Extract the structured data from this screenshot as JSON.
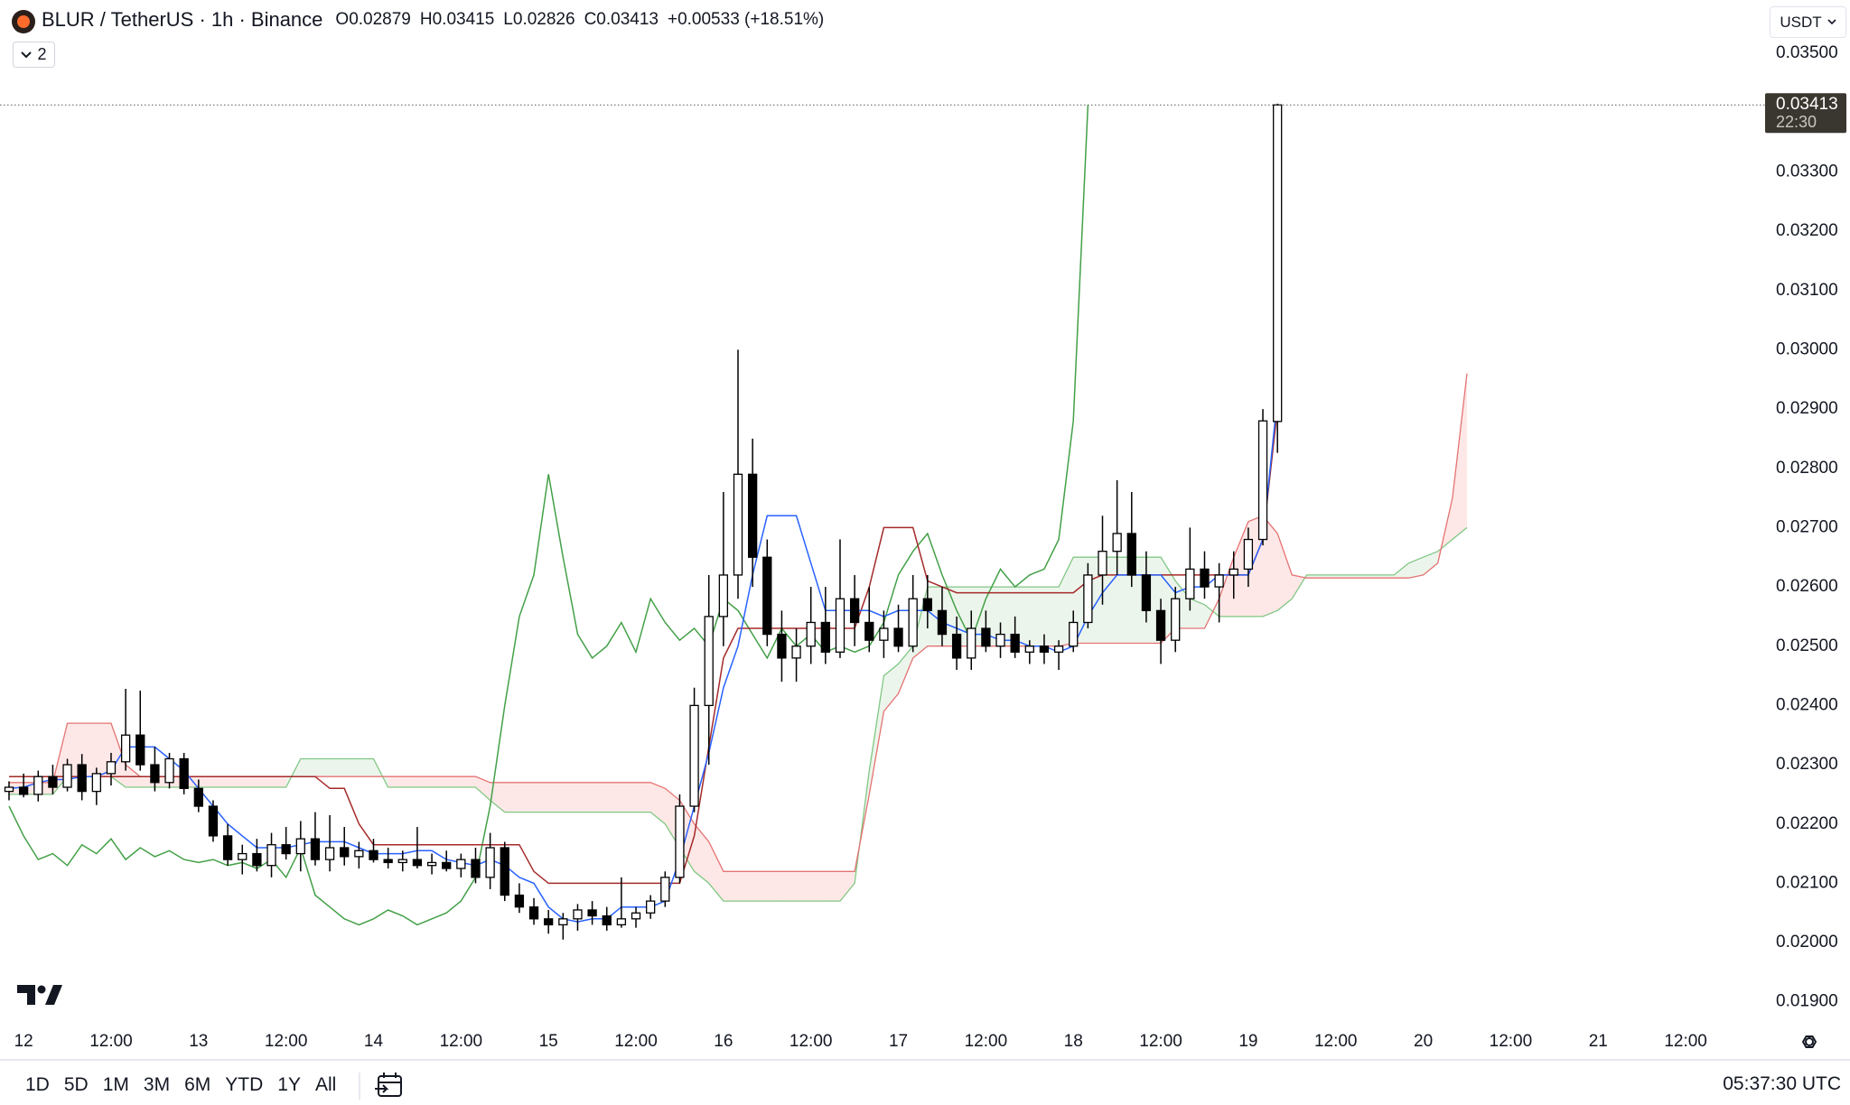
{
  "header": {
    "symbol": "BLUR / TetherUS · 1h · Binance",
    "ohlc": [
      {
        "key": "O",
        "value": 0.02879
      },
      {
        "key": "H",
        "value": 0.03415
      },
      {
        "key": "L",
        "value": 0.02826
      },
      {
        "key": "C",
        "value": 0.03413
      }
    ],
    "change": "+0.00533 (+18.51%)",
    "indicator_count": 2,
    "currency": "USDT"
  },
  "toolbar": {
    "ranges": [
      "1D",
      "5D",
      "1M",
      "3M",
      "6M",
      "YTD",
      "1Y",
      "All"
    ],
    "clock": "05:37:30 UTC"
  },
  "chart_data": {
    "type": "candlestick",
    "ylim": [
      0.0186,
      0.0359
    ],
    "yticks": [
      {
        "value": 0.035,
        "label": "0.03500"
      },
      {
        "value": 0.033,
        "label": "0.03300"
      },
      {
        "value": 0.032,
        "label": "0.03200"
      },
      {
        "value": 0.031,
        "label": "0.03100"
      },
      {
        "value": 0.03,
        "label": "0.03000"
      },
      {
        "value": 0.029,
        "label": "0.02900"
      },
      {
        "value": 0.028,
        "label": "0.02800"
      },
      {
        "value": 0.027,
        "label": "0.02700"
      },
      {
        "value": 0.026,
        "label": "0.02600"
      },
      {
        "value": 0.025,
        "label": "0.02500"
      },
      {
        "value": 0.024,
        "label": "0.02400"
      },
      {
        "value": 0.023,
        "label": "0.02300"
      },
      {
        "value": 0.022,
        "label": "0.02200"
      },
      {
        "value": 0.021,
        "label": "0.02100"
      },
      {
        "value": 0.02,
        "label": "0.02000"
      },
      {
        "value": 0.019,
        "label": "0.01900"
      }
    ],
    "time_labels": [
      "12",
      "12:00",
      "13",
      "12:00",
      "14",
      "12:00",
      "15",
      "12:00",
      "16",
      "12:00",
      "17",
      "12:00",
      "18",
      "12:00",
      "19",
      "12:00",
      "20",
      "12:00",
      "21",
      "12:00"
    ],
    "up_color": "#ffffff",
    "down_color": "#000000",
    "wick_color": "#000000",
    "open": [
      0.02255,
      0.02262,
      0.0225,
      0.0228,
      0.02262,
      0.023,
      0.02255,
      0.02285,
      0.02305,
      0.0235,
      0.023,
      0.0227,
      0.0231,
      0.0226,
      0.0223,
      0.0218,
      0.0214,
      0.0215,
      0.0213,
      0.02165,
      0.0215,
      0.02175,
      0.0214,
      0.0216,
      0.02145,
      0.02155,
      0.0214,
      0.02135,
      0.0214,
      0.0213,
      0.02135,
      0.02125,
      0.0214,
      0.0211,
      0.0216,
      0.0208,
      0.0206,
      0.0204,
      0.0203,
      0.0204,
      0.02055,
      0.02045,
      0.0203,
      0.0204,
      0.0205,
      0.0207,
      0.0211,
      0.0223,
      0.024,
      0.0255,
      0.0262,
      0.0279,
      0.0265,
      0.0252,
      0.0248,
      0.025,
      0.0254,
      0.0249,
      0.0258,
      0.0254,
      0.0251,
      0.0253,
      0.025,
      0.0258,
      0.0256,
      0.0252,
      0.0248,
      0.0253,
      0.025,
      0.0252,
      0.0249,
      0.025,
      0.0249,
      0.025,
      0.0254,
      0.0262,
      0.0266,
      0.0269,
      0.0262,
      0.0256,
      0.0251,
      0.0258,
      0.0263,
      0.026,
      0.0262,
      0.0263,
      0.0268,
      0.02879
    ],
    "high": [
      0.02272,
      0.02285,
      0.0229,
      0.023,
      0.0231,
      0.02318,
      0.02295,
      0.0232,
      0.02428,
      0.02425,
      0.0233,
      0.0232,
      0.0232,
      0.02275,
      0.0224,
      0.022,
      0.02165,
      0.02175,
      0.02185,
      0.02195,
      0.02205,
      0.0222,
      0.02215,
      0.02195,
      0.0217,
      0.02175,
      0.0216,
      0.02155,
      0.02195,
      0.0215,
      0.02155,
      0.0215,
      0.0216,
      0.02185,
      0.0217,
      0.021,
      0.02075,
      0.02055,
      0.0205,
      0.02065,
      0.0207,
      0.0206,
      0.0211,
      0.0206,
      0.0208,
      0.0212,
      0.0225,
      0.0243,
      0.0262,
      0.0276,
      0.03,
      0.0285,
      0.0268,
      0.0256,
      0.0253,
      0.026,
      0.026,
      0.0268,
      0.0262,
      0.026,
      0.0256,
      0.0257,
      0.0262,
      0.0262,
      0.026,
      0.0255,
      0.0256,
      0.0256,
      0.0254,
      0.0255,
      0.0251,
      0.0252,
      0.0251,
      0.0256,
      0.0264,
      0.0272,
      0.0278,
      0.0276,
      0.0266,
      0.0258,
      0.026,
      0.027,
      0.0266,
      0.0264,
      0.0266,
      0.027,
      0.029,
      0.03415
    ],
    "low": [
      0.0224,
      0.02245,
      0.02238,
      0.0225,
      0.02255,
      0.0224,
      0.02232,
      0.02265,
      0.0229,
      0.0229,
      0.02255,
      0.0226,
      0.0225,
      0.0222,
      0.0217,
      0.0213,
      0.02115,
      0.0212,
      0.0211,
      0.0214,
      0.0212,
      0.0213,
      0.0212,
      0.0213,
      0.02125,
      0.02135,
      0.02125,
      0.0212,
      0.02125,
      0.02115,
      0.0212,
      0.0211,
      0.021,
      0.0209,
      0.0207,
      0.0205,
      0.0203,
      0.02015,
      0.02005,
      0.0202,
      0.0203,
      0.0202,
      0.02025,
      0.02025,
      0.0204,
      0.0206,
      0.021,
      0.0222,
      0.023,
      0.025,
      0.0258,
      0.026,
      0.025,
      0.0244,
      0.0244,
      0.0247,
      0.0247,
      0.0248,
      0.025,
      0.0249,
      0.0248,
      0.0249,
      0.0249,
      0.0253,
      0.025,
      0.0246,
      0.0246,
      0.0249,
      0.0248,
      0.0248,
      0.0247,
      0.0247,
      0.0246,
      0.0249,
      0.0253,
      0.0257,
      0.0262,
      0.026,
      0.0254,
      0.0247,
      0.0249,
      0.0256,
      0.0258,
      0.0254,
      0.0258,
      0.026,
      0.0267,
      0.02826
    ],
    "close": [
      0.02262,
      0.0225,
      0.0228,
      0.02262,
      0.023,
      0.02255,
      0.02285,
      0.02305,
      0.0235,
      0.023,
      0.0227,
      0.0231,
      0.0226,
      0.0223,
      0.0218,
      0.0214,
      0.0215,
      0.0213,
      0.02165,
      0.0215,
      0.02175,
      0.0214,
      0.0216,
      0.02145,
      0.02155,
      0.0214,
      0.02135,
      0.0214,
      0.0213,
      0.02135,
      0.02125,
      0.0214,
      0.0211,
      0.0216,
      0.0208,
      0.0206,
      0.0204,
      0.0203,
      0.0204,
      0.02055,
      0.02045,
      0.0203,
      0.0204,
      0.0205,
      0.0207,
      0.0211,
      0.0223,
      0.024,
      0.0255,
      0.0262,
      0.0279,
      0.0265,
      0.0252,
      0.0248,
      0.025,
      0.0254,
      0.0249,
      0.0258,
      0.0254,
      0.0251,
      0.0253,
      0.025,
      0.0258,
      0.0256,
      0.0252,
      0.0248,
      0.0253,
      0.025,
      0.0252,
      0.0249,
      0.025,
      0.0249,
      0.025,
      0.0254,
      0.0262,
      0.0266,
      0.0269,
      0.0262,
      0.0256,
      0.0251,
      0.0258,
      0.0263,
      0.026,
      0.0262,
      0.0263,
      0.0268,
      0.0288,
      0.03413
    ],
    "conversion_line": {
      "color": "#2962ff",
      "values": [
        0.0226,
        0.02262,
        0.0227,
        0.02275,
        0.02275,
        0.0228,
        0.0228,
        0.0229,
        0.0233,
        0.0233,
        0.0233,
        0.0231,
        0.0229,
        0.0226,
        0.0223,
        0.022,
        0.0218,
        0.0216,
        0.0216,
        0.0216,
        0.02165,
        0.0217,
        0.0217,
        0.0217,
        0.0216,
        0.0215,
        0.0215,
        0.0215,
        0.02155,
        0.02155,
        0.0214,
        0.02135,
        0.0213,
        0.0214,
        0.0213,
        0.0211,
        0.021,
        0.0206,
        0.0204,
        0.02035,
        0.0204,
        0.0204,
        0.0206,
        0.0206,
        0.0206,
        0.0207,
        0.0214,
        0.0223,
        0.0232,
        0.0243,
        0.025,
        0.0262,
        0.0272,
        0.0272,
        0.0272,
        0.0264,
        0.0256,
        0.0256,
        0.0256,
        0.0256,
        0.0255,
        0.0256,
        0.0256,
        0.0256,
        0.0254,
        0.0253,
        0.0252,
        0.0252,
        0.0251,
        0.0251,
        0.025,
        0.025,
        0.0249,
        0.025,
        0.0255,
        0.0259,
        0.0262,
        0.0262,
        0.0262,
        0.0262,
        0.0259,
        0.026,
        0.026,
        0.0262,
        0.0262,
        0.0262,
        0.0268,
        0.0292
      ]
    },
    "base_line": {
      "color": "#a52a2a",
      "values": [
        0.0228,
        0.0228,
        0.0228,
        0.0228,
        0.0228,
        0.0228,
        0.0228,
        0.0228,
        0.0228,
        0.0228,
        0.0228,
        0.0228,
        0.0228,
        0.0228,
        0.0228,
        0.0228,
        0.0228,
        0.0228,
        0.0228,
        0.0228,
        0.0228,
        0.0228,
        0.0226,
        0.0226,
        0.022,
        0.02165,
        0.02165,
        0.02165,
        0.02165,
        0.02165,
        0.02165,
        0.02165,
        0.02165,
        0.02165,
        0.02165,
        0.02165,
        0.0212,
        0.021,
        0.021,
        0.021,
        0.021,
        0.021,
        0.021,
        0.021,
        0.021,
        0.021,
        0.021,
        0.0218,
        0.0233,
        0.0248,
        0.0253,
        0.0253,
        0.0253,
        0.0253,
        0.0253,
        0.0253,
        0.0253,
        0.0253,
        0.0253,
        0.026,
        0.027,
        0.027,
        0.027,
        0.0261,
        0.026,
        0.0259,
        0.0259,
        0.0259,
        0.0259,
        0.0259,
        0.0259,
        0.0259,
        0.0259,
        0.0259,
        0.0261,
        0.0262,
        0.0262,
        0.0262,
        0.0262,
        0.0262,
        0.0262,
        0.0262,
        0.0262,
        0.0262,
        0.0262,
        0.0262,
        0.0268,
        0.029
      ]
    },
    "lagging_span": {
      "color": "#43a047",
      "values": [
        0.0223,
        0.0218,
        0.0214,
        0.0215,
        0.0213,
        0.02165,
        0.0215,
        0.02175,
        0.0214,
        0.0216,
        0.02145,
        0.02155,
        0.0214,
        0.02135,
        0.0214,
        0.0213,
        0.02135,
        0.02125,
        0.0214,
        0.0211,
        0.0216,
        0.0208,
        0.0206,
        0.0204,
        0.0203,
        0.0204,
        0.02055,
        0.02045,
        0.0203,
        0.0204,
        0.0205,
        0.0207,
        0.0211,
        0.0223,
        0.024,
        0.0255,
        0.0262,
        0.0279,
        0.0265,
        0.0252,
        0.0248,
        0.025,
        0.0254,
        0.0249,
        0.0258,
        0.0254,
        0.0251,
        0.0253,
        0.025,
        0.0258,
        0.0256,
        0.0252,
        0.0248,
        0.0253,
        0.025,
        0.0252,
        0.0249,
        0.025,
        0.0249,
        0.025,
        0.0254,
        0.0262,
        0.0266,
        0.0269,
        0.0262,
        0.0256,
        0.0251,
        0.0258,
        0.0263,
        0.026,
        0.0262,
        0.0263,
        0.0268,
        0.0288,
        0.03413
      ]
    },
    "leading_span_a": {
      "color": "#81c784",
      "values": [
        0.0225,
        0.0225,
        0.0225,
        0.0225,
        0.0228,
        0.0228,
        0.0228,
        0.0228,
        0.02262,
        0.02262,
        0.02262,
        0.02262,
        0.02262,
        0.02262,
        0.02262,
        0.02262,
        0.02262,
        0.02262,
        0.02262,
        0.02262,
        0.0231,
        0.0231,
        0.0231,
        0.0231,
        0.0231,
        0.0231,
        0.02262,
        0.02262,
        0.02262,
        0.02262,
        0.02262,
        0.02262,
        0.02262,
        0.0224,
        0.0222,
        0.0222,
        0.0222,
        0.0222,
        0.0222,
        0.0222,
        0.0222,
        0.0222,
        0.0222,
        0.0222,
        0.0222,
        0.022,
        0.0216,
        0.0212,
        0.021,
        0.0207,
        0.0207,
        0.0207,
        0.0207,
        0.0207,
        0.0207,
        0.0207,
        0.0207,
        0.0207,
        0.021,
        0.0229,
        0.0245,
        0.0247,
        0.025,
        0.026,
        0.026,
        0.026,
        0.026,
        0.026,
        0.026,
        0.026,
        0.026,
        0.026,
        0.026,
        0.0265,
        0.0265,
        0.0265,
        0.0265,
        0.0265,
        0.0265,
        0.0265,
        0.0261,
        0.0258,
        0.0257,
        0.0255,
        0.0255,
        0.0255,
        0.0255,
        0.0256,
        0.0258,
        0.0262,
        0.0262,
        0.0262,
        0.0262,
        0.0262,
        0.0262,
        0.0262,
        0.0264,
        0.0265,
        0.0266,
        0.0268,
        0.027
      ]
    },
    "leading_span_b": {
      "color": "#e57373",
      "values": [
        0.0227,
        0.0227,
        0.0227,
        0.0227,
        0.0237,
        0.0237,
        0.0237,
        0.0237,
        0.023,
        0.0228,
        0.0228,
        0.0228,
        0.0228,
        0.0228,
        0.0228,
        0.0228,
        0.0228,
        0.0228,
        0.0228,
        0.0228,
        0.0228,
        0.0228,
        0.0228,
        0.0228,
        0.0228,
        0.0228,
        0.0228,
        0.0228,
        0.0228,
        0.0228,
        0.0228,
        0.0228,
        0.0228,
        0.0227,
        0.0227,
        0.0227,
        0.0227,
        0.0227,
        0.0227,
        0.0227,
        0.0227,
        0.0227,
        0.0227,
        0.0227,
        0.0227,
        0.0226,
        0.0224,
        0.022,
        0.0217,
        0.0212,
        0.0212,
        0.0212,
        0.0212,
        0.0212,
        0.0212,
        0.0212,
        0.0212,
        0.0212,
        0.0212,
        0.0225,
        0.0239,
        0.0242,
        0.0248,
        0.025,
        0.025,
        0.025,
        0.025,
        0.025,
        0.025,
        0.025,
        0.025,
        0.025,
        0.025,
        0.02505,
        0.02505,
        0.02505,
        0.02505,
        0.02505,
        0.02505,
        0.02505,
        0.0253,
        0.0253,
        0.0253,
        0.0258,
        0.0265,
        0.0271,
        0.0272,
        0.0269,
        0.0262,
        0.02615,
        0.02615,
        0.02615,
        0.02615,
        0.02615,
        0.02615,
        0.02615,
        0.02615,
        0.0262,
        0.0264,
        0.0275,
        0.0296
      ]
    },
    "cloud_up_color": "rgba(67,160,71,0.10)",
    "cloud_down_color": "rgba(244,67,54,0.12)",
    "price_marker": {
      "value": 0.03413,
      "countdown": "22:30",
      "color": "#3a3630"
    }
  }
}
